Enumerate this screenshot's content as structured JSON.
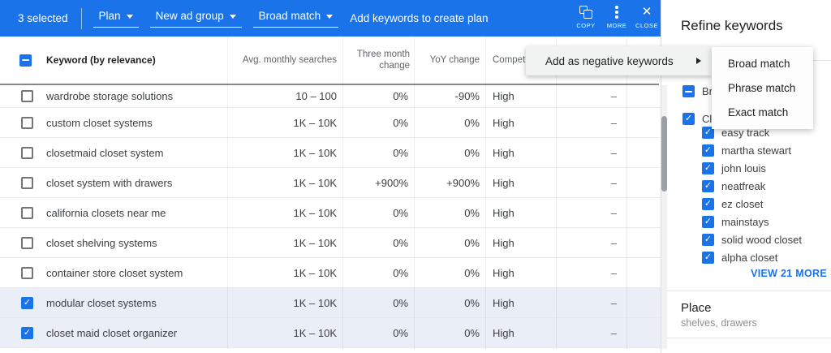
{
  "toolbar": {
    "selected_count": "3 selected",
    "plan_label": "Plan",
    "new_ad_group_label": "New ad group",
    "match_type_label": "Broad match",
    "add_keywords_label": "Add keywords to create plan",
    "copy_label": "COPY",
    "more_label": "MORE",
    "close_label": "CLOSE"
  },
  "table": {
    "header": {
      "keyword": "Keyword (by relevance)",
      "avg_monthly_searches": "Avg. monthly searches",
      "three_month_change": "Three month change",
      "yoy_change": "YoY change",
      "competition": "Competition"
    },
    "rows": [
      {
        "keyword": "wardrobe storage solutions",
        "avg_monthly_searches": "10 – 100",
        "three_month_change": "0%",
        "yoy_change": "-90%",
        "competition": "High",
        "ad_impression_share": "–",
        "selected": false
      },
      {
        "keyword": "custom closet systems",
        "avg_monthly_searches": "1K – 10K",
        "three_month_change": "0%",
        "yoy_change": "0%",
        "competition": "High",
        "ad_impression_share": "–",
        "selected": false
      },
      {
        "keyword": "closetmaid closet system",
        "avg_monthly_searches": "1K – 10K",
        "three_month_change": "0%",
        "yoy_change": "0%",
        "competition": "High",
        "ad_impression_share": "–",
        "selected": false
      },
      {
        "keyword": "closet system with drawers",
        "avg_monthly_searches": "1K – 10K",
        "three_month_change": "+900%",
        "yoy_change": "+900%",
        "competition": "High",
        "ad_impression_share": "–",
        "selected": false
      },
      {
        "keyword": "california closets near me",
        "avg_monthly_searches": "1K – 10K",
        "three_month_change": "0%",
        "yoy_change": "0%",
        "competition": "High",
        "ad_impression_share": "–",
        "selected": false
      },
      {
        "keyword": "closet shelving systems",
        "avg_monthly_searches": "1K – 10K",
        "three_month_change": "0%",
        "yoy_change": "0%",
        "competition": "High",
        "ad_impression_share": "–",
        "selected": false
      },
      {
        "keyword": "container store closet system",
        "avg_monthly_searches": "1K – 10K",
        "three_month_change": "0%",
        "yoy_change": "0%",
        "competition": "High",
        "ad_impression_share": "–",
        "selected": false
      },
      {
        "keyword": "modular closet systems",
        "avg_monthly_searches": "1K – 10K",
        "three_month_change": "0%",
        "yoy_change": "0%",
        "competition": "High",
        "ad_impression_share": "–",
        "selected": true
      },
      {
        "keyword": "closet maid closet organizer",
        "avg_monthly_searches": "1K – 10K",
        "three_month_change": "0%",
        "yoy_change": "0%",
        "competition": "High",
        "ad_impression_share": "–",
        "selected": true
      }
    ]
  },
  "context_menu": {
    "label": "Add as negative keywords",
    "submenu_items": [
      "Broad match",
      "Phrase match",
      "Exact match"
    ]
  },
  "refine_panel": {
    "title": "Refine keywords",
    "groups": [
      {
        "label": "Brand or Non-Brand",
        "state": "indeterminate"
      },
      {
        "label": "Closet",
        "state": "checked"
      }
    ],
    "brands": [
      "easy track",
      "martha stewart",
      "john louis",
      "neatfreak",
      "ez closet",
      "mainstays",
      "solid wood closet",
      "alpha closet"
    ],
    "view_more_label": "VIEW 21 MORE",
    "place_section": {
      "title": "Place",
      "values": "shelves, drawers"
    }
  },
  "colors": {
    "accent_blue": "#1a73e8",
    "selected_row_bg": "#e9eef7"
  }
}
